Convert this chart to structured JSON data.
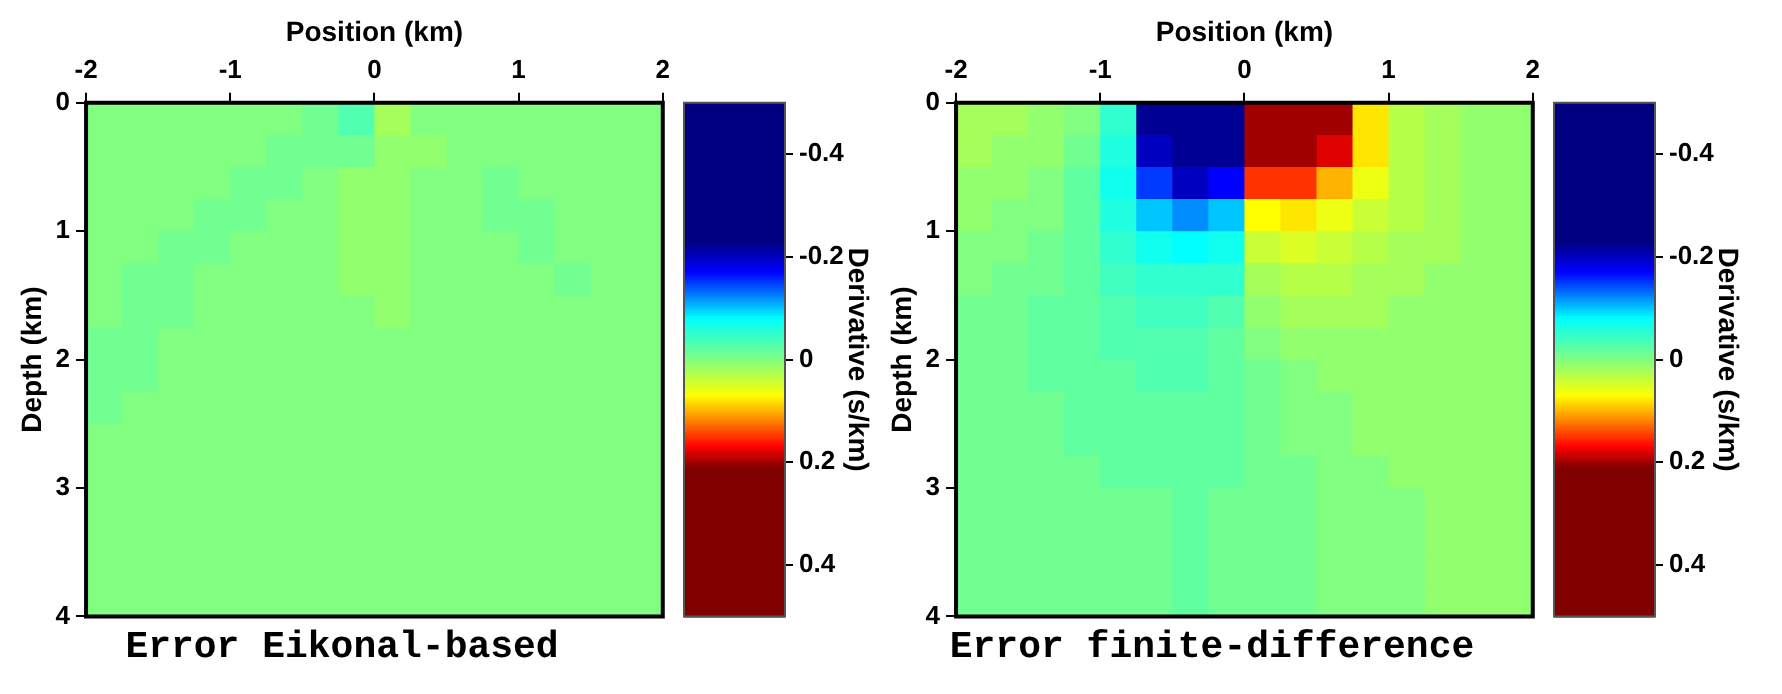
{
  "chart_data": [
    {
      "type": "heatmap",
      "title": "Error Eikonal-based",
      "xlabel": "Position (km)",
      "ylabel": "Depth (km)",
      "clabel": "Derivative (s/km)",
      "xlim": [
        -2,
        2
      ],
      "xticks": [
        -2,
        -1,
        0,
        1,
        2
      ],
      "ylim": [
        4,
        0
      ],
      "yticks": [
        0,
        1,
        2,
        3,
        4
      ],
      "clim": [
        -0.5,
        0.5
      ],
      "cticks": [
        -0.4,
        -0.2,
        0,
        0.2,
        0.4
      ],
      "grid": false,
      "cells": [
        [
          0,
          0,
          0,
          0,
          0,
          0,
          -0.01,
          -0.03,
          0.02,
          0,
          0,
          0,
          0,
          0,
          0,
          0
        ],
        [
          0,
          0,
          0,
          0,
          0,
          -0.01,
          -0.01,
          -0.01,
          0.01,
          0.01,
          0,
          0,
          0,
          0,
          0,
          0
        ],
        [
          0,
          0,
          0,
          0,
          -0.01,
          -0.01,
          0,
          0.01,
          0.01,
          0,
          0,
          -0.01,
          0,
          0,
          0,
          0
        ],
        [
          0,
          0,
          0,
          -0.01,
          -0.01,
          0,
          0,
          0.01,
          0.01,
          0,
          0,
          -0.01,
          -0.01,
          0,
          0,
          0
        ],
        [
          0,
          0,
          -0.01,
          -0.01,
          0,
          0,
          0,
          0.01,
          0.01,
          0,
          0,
          0,
          -0.01,
          0,
          0,
          0
        ],
        [
          0,
          -0.01,
          -0.01,
          0,
          0,
          0,
          0,
          0.01,
          0.01,
          0,
          0,
          0,
          0,
          -0.01,
          0,
          0
        ],
        [
          0,
          -0.01,
          -0.01,
          0,
          0,
          0,
          0,
          0,
          0.01,
          0,
          0,
          0,
          0,
          0,
          0,
          0
        ],
        [
          -0.01,
          -0.01,
          0,
          0,
          0,
          0,
          0,
          0,
          0,
          0,
          0,
          0,
          0,
          0,
          0,
          0
        ],
        [
          -0.01,
          -0.01,
          0,
          0,
          0,
          0,
          0,
          0,
          0,
          0,
          0,
          0,
          0,
          0,
          0,
          0
        ],
        [
          -0.01,
          0,
          0,
          0,
          0,
          0,
          0,
          0,
          0,
          0,
          0,
          0,
          0,
          0,
          0,
          0
        ],
        [
          0,
          0,
          0,
          0,
          0,
          0,
          0,
          0,
          0,
          0,
          0,
          0,
          0,
          0,
          0,
          0
        ],
        [
          0,
          0,
          0,
          0,
          0,
          0,
          0,
          0,
          0,
          0,
          0,
          0,
          0,
          0,
          0,
          0
        ],
        [
          0,
          0,
          0,
          0,
          0,
          0,
          0,
          0,
          0,
          0,
          0,
          0,
          0,
          0,
          0,
          0
        ],
        [
          0,
          0,
          0,
          0,
          0,
          0,
          0,
          0,
          0,
          0,
          0,
          0,
          0,
          0,
          0,
          0
        ],
        [
          0,
          0,
          0,
          0,
          0,
          0,
          0,
          0,
          0,
          0,
          0,
          0,
          0,
          0,
          0,
          0
        ],
        [
          0,
          0,
          0,
          0,
          0,
          0,
          0,
          0,
          0,
          0,
          0,
          0,
          0,
          0,
          0,
          0
        ]
      ]
    },
    {
      "type": "heatmap",
      "title": "Error finite-difference",
      "xlabel": "Position (km)",
      "ylabel": "Depth (km)",
      "clabel": "Derivative (s/km)",
      "xlim": [
        -2,
        2
      ],
      "xticks": [
        -2,
        -1,
        0,
        1,
        2
      ],
      "ylim": [
        4,
        0
      ],
      "yticks": [
        0,
        1,
        2,
        3,
        4
      ],
      "clim": [
        -0.5,
        0.5
      ],
      "cticks": [
        -0.4,
        -0.2,
        0,
        0.2,
        0.4
      ],
      "grid": false,
      "cells": [
        [
          0.02,
          0.02,
          0.01,
          0,
          -0.05,
          -0.22,
          -0.22,
          -0.22,
          0.2,
          0.2,
          0.2,
          0.08,
          0.03,
          0.02,
          0.01,
          0.01
        ],
        [
          0.02,
          0.01,
          0.01,
          -0.01,
          -0.06,
          -0.2,
          -0.22,
          -0.22,
          0.2,
          0.2,
          0.18,
          0.08,
          0.03,
          0.02,
          0.01,
          0.01
        ],
        [
          0.01,
          0.01,
          0,
          -0.02,
          -0.07,
          -0.15,
          -0.2,
          -0.17,
          0.15,
          0.15,
          0.1,
          0.06,
          0.03,
          0.02,
          0.01,
          0.01
        ],
        [
          0.01,
          0,
          0,
          -0.02,
          -0.06,
          -0.1,
          -0.12,
          -0.1,
          0.07,
          0.08,
          0.06,
          0.04,
          0.03,
          0.02,
          0.01,
          0.01
        ],
        [
          0,
          0,
          -0.01,
          -0.02,
          -0.05,
          -0.07,
          -0.08,
          -0.07,
          0.04,
          0.05,
          0.04,
          0.03,
          0.02,
          0.02,
          0.01,
          0.01
        ],
        [
          0,
          -0.01,
          -0.01,
          -0.02,
          -0.04,
          -0.05,
          -0.05,
          -0.05,
          0.02,
          0.03,
          0.03,
          0.02,
          0.02,
          0.01,
          0.01,
          0.01
        ],
        [
          -0.01,
          -0.01,
          -0.02,
          -0.02,
          -0.03,
          -0.04,
          -0.04,
          -0.03,
          0.01,
          0.02,
          0.02,
          0.02,
          0.01,
          0.01,
          0.01,
          0.01
        ],
        [
          -0.01,
          -0.01,
          -0.02,
          -0.02,
          -0.03,
          -0.03,
          -0.03,
          -0.02,
          0,
          0.01,
          0.01,
          0.01,
          0.01,
          0.01,
          0.01,
          0.01
        ],
        [
          -0.01,
          -0.01,
          -0.02,
          -0.02,
          -0.02,
          -0.03,
          -0.03,
          -0.02,
          -0.01,
          0,
          0.01,
          0.01,
          0.01,
          0.01,
          0.01,
          0.01
        ],
        [
          -0.01,
          -0.01,
          -0.01,
          -0.02,
          -0.02,
          -0.02,
          -0.02,
          -0.02,
          -0.01,
          0,
          0,
          0.01,
          0.01,
          0.01,
          0.01,
          0.01
        ],
        [
          -0.01,
          -0.01,
          -0.01,
          -0.02,
          -0.02,
          -0.02,
          -0.02,
          -0.02,
          -0.01,
          0,
          0,
          0.01,
          0.01,
          0.01,
          0.01,
          0.01
        ],
        [
          -0.01,
          -0.01,
          -0.01,
          -0.01,
          -0.02,
          -0.02,
          -0.02,
          -0.02,
          -0.01,
          -0.01,
          0,
          0,
          0.01,
          0.01,
          0.01,
          0.01
        ],
        [
          -0.01,
          -0.01,
          -0.01,
          -0.01,
          -0.01,
          -0.01,
          -0.02,
          -0.01,
          -0.01,
          -0.01,
          0,
          0,
          0,
          0.01,
          0.01,
          0.01
        ],
        [
          -0.01,
          -0.01,
          -0.01,
          -0.01,
          -0.01,
          -0.01,
          -0.02,
          -0.01,
          -0.01,
          -0.01,
          0,
          0,
          0,
          0.01,
          0.01,
          0.01
        ],
        [
          -0.01,
          -0.01,
          -0.01,
          -0.01,
          -0.01,
          -0.01,
          -0.02,
          -0.01,
          -0.01,
          -0.01,
          0,
          0,
          0,
          0.01,
          0.01,
          0.01
        ],
        [
          -0.01,
          -0.01,
          -0.01,
          -0.01,
          -0.01,
          -0.01,
          -0.02,
          -0.01,
          -0.01,
          -0.01,
          0,
          0,
          0,
          0.01,
          0.01,
          0.01
        ]
      ]
    }
  ]
}
